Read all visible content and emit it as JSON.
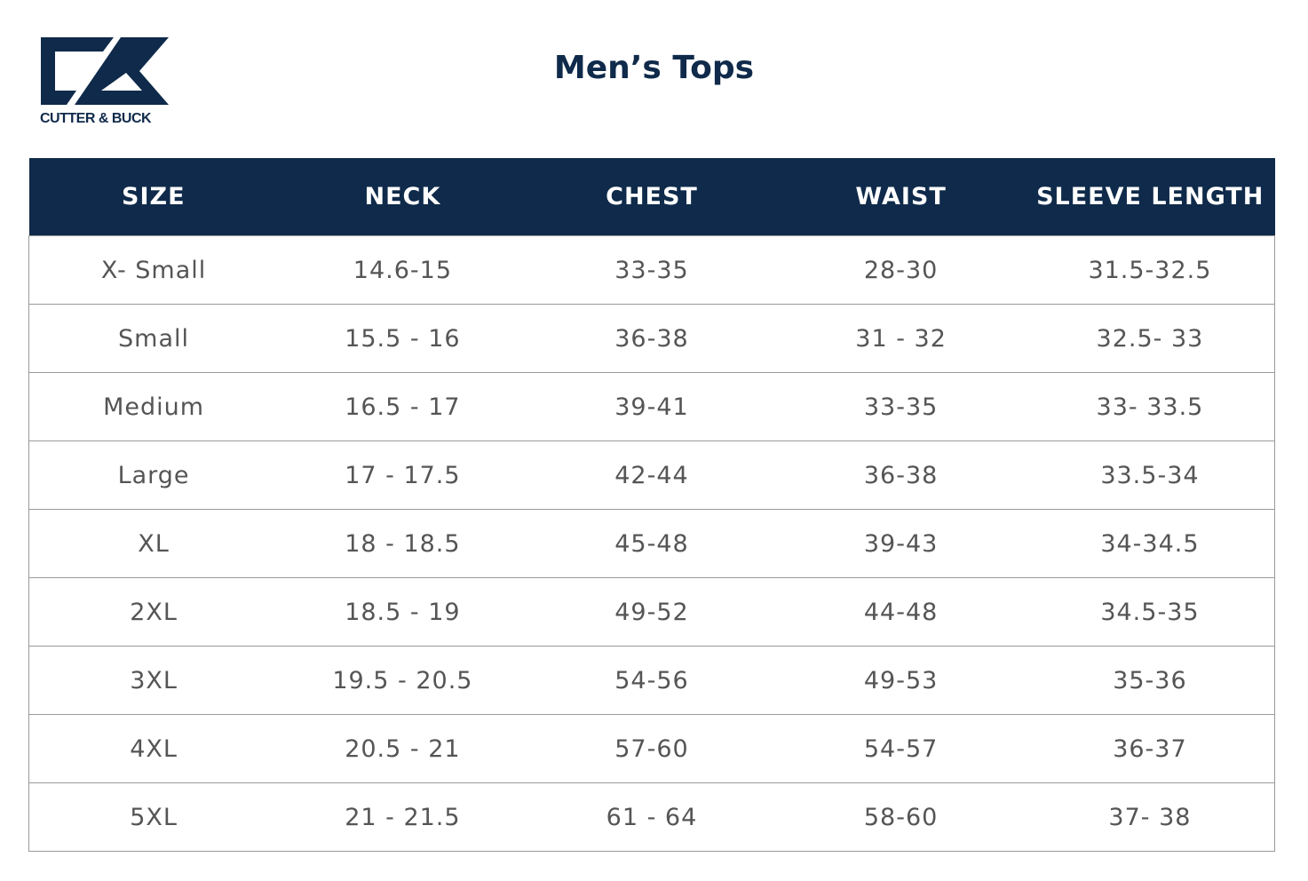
{
  "brand": {
    "logo_text": "CUTTER & BUCK",
    "color": "#0f2a4a"
  },
  "title": "Men’s Tops",
  "table": {
    "headers": [
      "SIZE",
      "NECK",
      "CHEST",
      "WAIST",
      "SLEEVE LENGTH"
    ],
    "rows": [
      [
        "X- Small",
        "14.6-15",
        "33-35",
        "28-30",
        "31.5-32.5"
      ],
      [
        "Small",
        "15.5 - 16",
        "36-38",
        "31 - 32",
        "32.5- 33"
      ],
      [
        "Medium",
        "16.5 - 17",
        "39-41",
        "33-35",
        "33- 33.5"
      ],
      [
        "Large",
        "17 - 17.5",
        "42-44",
        "36-38",
        "33.5-34"
      ],
      [
        "XL",
        "18 - 18.5",
        "45-48",
        "39-43",
        "34-34.5"
      ],
      [
        "2XL",
        "18.5 - 19",
        "49-52",
        "44-48",
        "34.5-35"
      ],
      [
        "3XL",
        "19.5 - 20.5",
        "54-56",
        "49-53",
        "35-36"
      ],
      [
        "4XL",
        "20.5 - 21",
        "57-60",
        "54-57",
        "36-37"
      ],
      [
        "5XL",
        "21 - 21.5",
        "61 - 64",
        "58-60",
        "37- 38"
      ]
    ]
  }
}
